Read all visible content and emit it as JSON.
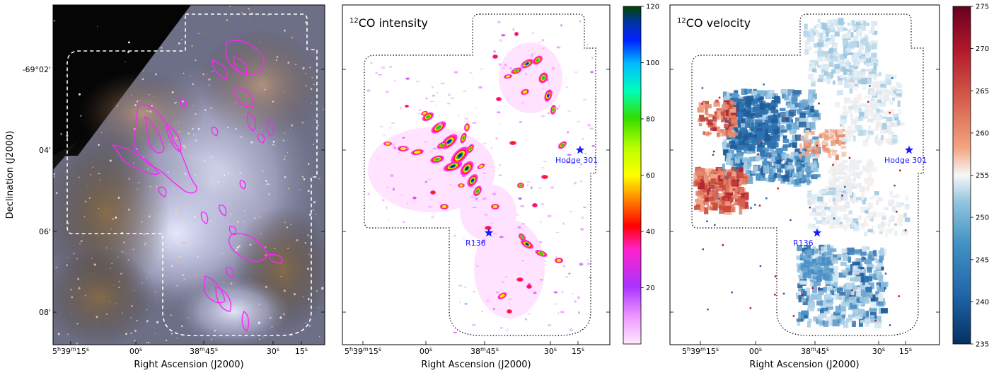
{
  "figure": {
    "ylabel": "Declination (J2000)",
    "xlabel": "Right Ascension (J2000)",
    "dec_ticks": [
      "-69°02'",
      "04'",
      "06'",
      "08'"
    ],
    "ra_ticks": [
      {
        "h": "5",
        "m": "39",
        "s": "15",
        "full": true
      },
      {
        "label": "00",
        "sup": "s"
      },
      {
        "h": "",
        "m": "38",
        "s": "45",
        "partial": true
      },
      {
        "label": "30",
        "sup": "s"
      },
      {
        "label": "15",
        "sup": "s"
      }
    ]
  },
  "panels": [
    {
      "id": "rgb",
      "title": "",
      "kind": "image"
    },
    {
      "id": "intensity",
      "title_pre": "12",
      "title_post": "CO intensity",
      "colorbar": {
        "min": 0,
        "max": 120,
        "ticks": [
          "120",
          "100",
          "80",
          "60",
          "40",
          "20"
        ],
        "colormap": "gist_ncar_r"
      }
    },
    {
      "id": "velocity",
      "title_pre": "12",
      "title_post": "CO velocity",
      "colorbar": {
        "min": 235,
        "max": 275,
        "ticks": [
          "275",
          "270",
          "265",
          "260",
          "255",
          "250",
          "245",
          "240",
          "235"
        ],
        "colormap": "RdBu_r"
      }
    }
  ],
  "markers": [
    {
      "name": "Hodge 301",
      "symbol": "star",
      "color": "#1a1aff"
    },
    {
      "name": "R136",
      "symbol": "star",
      "color": "#1a1aff"
    }
  ],
  "colors": {
    "contour": "#ff22ff",
    "footprint_dashed": "#ffffff",
    "footprint_dotted": "#000000",
    "star": "#1a1aff"
  }
}
